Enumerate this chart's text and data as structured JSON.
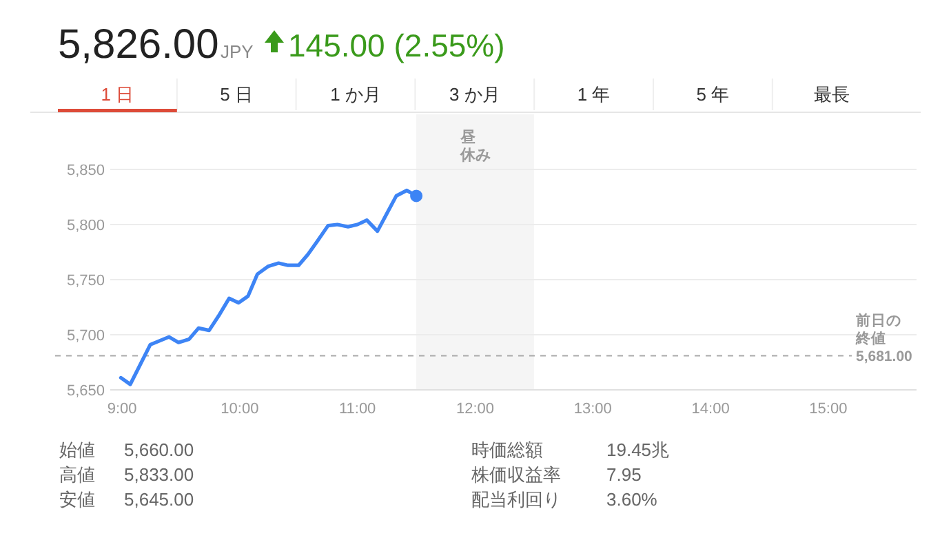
{
  "chart_data": {
    "type": "line",
    "title": "5,826.00",
    "annotations": [
      "JPY",
      "145.00 (2.55%)",
      "1 日",
      "5 日",
      "1 か月",
      "3 か月",
      "1 年",
      "5 年",
      "最長",
      "始値",
      "5,660.00",
      "高値",
      "5,833.00",
      "安値",
      "5,645.00",
      "時価総額",
      "19.45兆",
      "株価収益率",
      "7.95",
      "配当利回り",
      "3.60%",
      "5,681.00"
    ],
    "x": [
      8.99,
      9.07,
      9.24,
      9.4,
      9.48,
      9.57,
      9.65,
      9.74,
      9.82,
      9.91,
      9.99,
      10.07,
      10.15,
      10.24,
      10.33,
      10.41,
      10.5,
      10.58,
      10.66,
      10.75,
      10.83,
      10.92,
      11.0,
      11.08,
      11.17,
      11.25,
      11.33,
      11.42,
      11.5
    ],
    "series": [
      {
        "color": "#3d84f5",
        "values": [
          5661,
          5655,
          5691,
          5698,
          5693,
          5696,
          5706,
          5704,
          5717,
          5733,
          5729,
          5735,
          5755,
          5762,
          5765,
          5763,
          5763,
          5773,
          5785,
          5799,
          5800,
          5798,
          5800,
          5804,
          5794,
          5810,
          5826,
          5831,
          5826
        ]
      }
    ],
    "xlim": [
      8.9,
      15.75
    ],
    "xticks": [
      {
        "value": 9,
        "label": "9:00"
      },
      {
        "value": 10,
        "label": "10:00"
      },
      {
        "value": 11,
        "label": "11:00"
      },
      {
        "value": 12,
        "label": "12:00"
      },
      {
        "value": 13,
        "label": "13:00"
      },
      {
        "value": 14,
        "label": "14:00"
      },
      {
        "value": 15,
        "label": "15:00"
      }
    ],
    "ylim": [
      5650,
      5900
    ],
    "yticks": [
      {
        "value": 5650,
        "label": "5,650"
      },
      {
        "value": 5700,
        "label": "5,700"
      },
      {
        "value": 5750,
        "label": "5,750"
      },
      {
        "value": 5800,
        "label": "5,800"
      },
      {
        "value": 5850,
        "label": "5,850"
      }
    ],
    "grid": "y",
    "ref_lines": [
      {
        "axis": "y",
        "value": 5681,
        "label": "前日の終値",
        "color": "#aaaaaa",
        "line_style": "dashed"
      }
    ],
    "bands": [
      {
        "axis": "x",
        "from": 11.5,
        "to": 12.5,
        "label": "昼休み",
        "color": "#f5f5f5"
      }
    ]
  }
}
